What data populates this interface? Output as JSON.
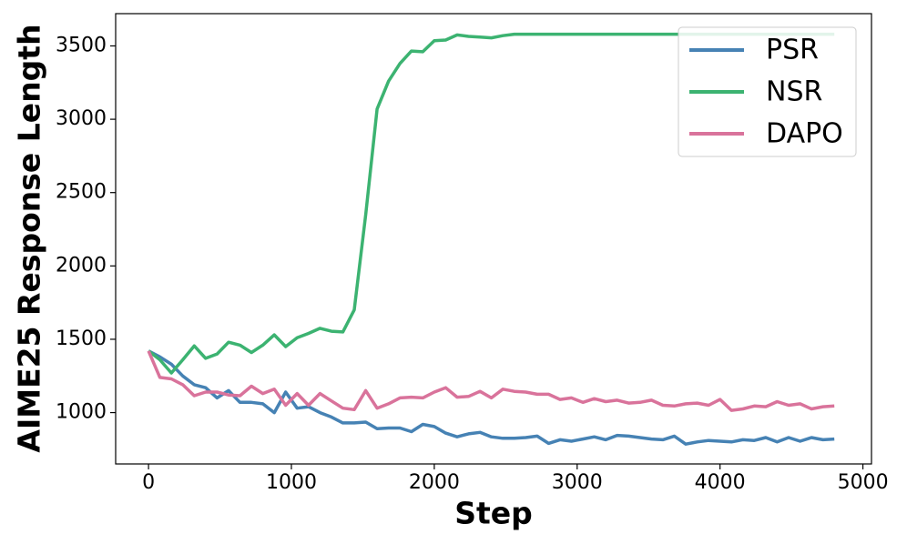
{
  "chart_data": {
    "type": "line",
    "xlabel": "Step",
    "ylabel": "AIME25 Response Length",
    "x": [
      0,
      80,
      160,
      240,
      320,
      400,
      480,
      560,
      640,
      720,
      800,
      880,
      960,
      1040,
      1120,
      1200,
      1280,
      1360,
      1440,
      1520,
      1600,
      1680,
      1760,
      1840,
      1920,
      2000,
      2080,
      2160,
      2240,
      2320,
      2400,
      2480,
      2560,
      2640,
      2720,
      2800,
      2880,
      2960,
      3040,
      3120,
      3200,
      3280,
      3360,
      3440,
      3520,
      3600,
      3680,
      3760,
      3840,
      3920,
      4000,
      4080,
      4160,
      4240,
      4320,
      4400,
      4480,
      4560,
      4640,
      4720,
      4800
    ],
    "series": [
      {
        "name": "PSR",
        "color": "#4682b4",
        "values": [
          1420,
          1380,
          1330,
          1250,
          1190,
          1170,
          1100,
          1150,
          1070,
          1070,
          1060,
          1000,
          1140,
          1030,
          1040,
          1000,
          970,
          930,
          930,
          935,
          890,
          895,
          895,
          870,
          920,
          905,
          860,
          835,
          855,
          865,
          835,
          825,
          825,
          830,
          840,
          790,
          815,
          805,
          820,
          835,
          815,
          845,
          840,
          830,
          820,
          815,
          840,
          785,
          800,
          810,
          805,
          800,
          815,
          810,
          830,
          800,
          830,
          805,
          830,
          815,
          820
        ]
      },
      {
        "name": "NSR",
        "color": "#3cb371",
        "values": [
          1420,
          1360,
          1270,
          1360,
          1455,
          1370,
          1400,
          1480,
          1460,
          1410,
          1460,
          1530,
          1450,
          1510,
          1540,
          1575,
          1555,
          1550,
          1700,
          2350,
          3070,
          3260,
          3380,
          3465,
          3460,
          3535,
          3540,
          3575,
          3565,
          3560,
          3555,
          3570,
          3580,
          3580,
          3580,
          3580,
          3580,
          3580,
          3580,
          3580,
          3580,
          3580,
          3580,
          3580,
          3580,
          3580,
          3580,
          3580,
          3580,
          3580,
          3580,
          3580,
          3580,
          3580,
          3580,
          3580,
          3580,
          3580,
          3580,
          3580,
          3580
        ]
      },
      {
        "name": "DAPO",
        "color": "#d9739b",
        "values": [
          1420,
          1240,
          1230,
          1190,
          1115,
          1140,
          1140,
          1120,
          1115,
          1180,
          1130,
          1160,
          1050,
          1130,
          1050,
          1130,
          1080,
          1030,
          1020,
          1150,
          1030,
          1060,
          1100,
          1105,
          1100,
          1140,
          1170,
          1105,
          1110,
          1145,
          1100,
          1160,
          1145,
          1140,
          1125,
          1125,
          1090,
          1100,
          1070,
          1095,
          1075,
          1085,
          1065,
          1070,
          1085,
          1050,
          1045,
          1060,
          1065,
          1050,
          1090,
          1015,
          1025,
          1045,
          1040,
          1075,
          1050,
          1060,
          1025,
          1040,
          1045
        ]
      }
    ],
    "xlim": [
      -230,
      5060
    ],
    "xticks": [
      0,
      1000,
      2000,
      3000,
      4000,
      5000
    ],
    "ylim": [
      650,
      3720
    ],
    "yticks": [
      1000,
      1500,
      2000,
      2500,
      3000,
      3500
    ],
    "legend": "upper right"
  }
}
